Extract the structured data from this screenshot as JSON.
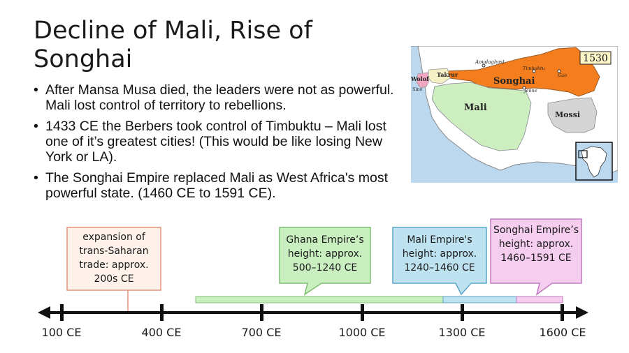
{
  "title": "Decline of Mali, Rise of Songhai",
  "bullets": [
    {
      "text": "After Mansa Musa died, the leaders were not as powerful. Mali lost control of territory to rebellions."
    },
    {
      "text": "1433 CE the Berbers took control of Timbuktu – Mali lost one of it’s greatest cities! (This would be like losing New York or LA)."
    },
    {
      "text": "The Songhai Empire replaced Mali as West Africa's most powerful state. (1460 CE to 1591 CE)."
    }
  ],
  "map": {
    "year_label": "1530",
    "regions": {
      "songhai": "Songhai",
      "mali": "Mali",
      "mossi": "Mossi",
      "takrur": "Takrur",
      "wolof": "Wolof",
      "sine": "Sine"
    },
    "cities": {
      "aoudaghost": "Aoudaghost",
      "timbuktu": "Timbuktu",
      "gao": "Gao",
      "jenne": "Jenne"
    },
    "colors": {
      "ocean": "#bcd8ef",
      "land": "#ffffff",
      "songhai": "#f47e1e",
      "mali": "#cdeebe",
      "mossi": "#d5d5d5",
      "takrur": "#f6f0c6",
      "wolof": "#f3a7c3"
    }
  },
  "timeline": {
    "ticks": [
      "100 CE",
      "400 CE",
      "700 CE",
      "1000 CE",
      "1300 CE",
      "1600 CE"
    ],
    "callouts": {
      "trade": "expansion of trans-Saharan trade: approx. 200s CE",
      "ghana": "Ghana Empire’s height: approx. 500–1240 CE",
      "mali": "Mali Empire's height: approx. 1240–1460 CE",
      "songhai": "Songhai Empire’s height: approx. 1460–1591 CE"
    },
    "colors": {
      "trade_border": "#e5937a",
      "trade_fill": "#fdf1ea",
      "ghana": "#c9efc1",
      "ghana_border": "#7dbf72",
      "mali": "#bfe2f1",
      "mali_border": "#5aa7c8",
      "songhai": "#f5cdee",
      "songhai_border": "#c07cc0"
    }
  }
}
